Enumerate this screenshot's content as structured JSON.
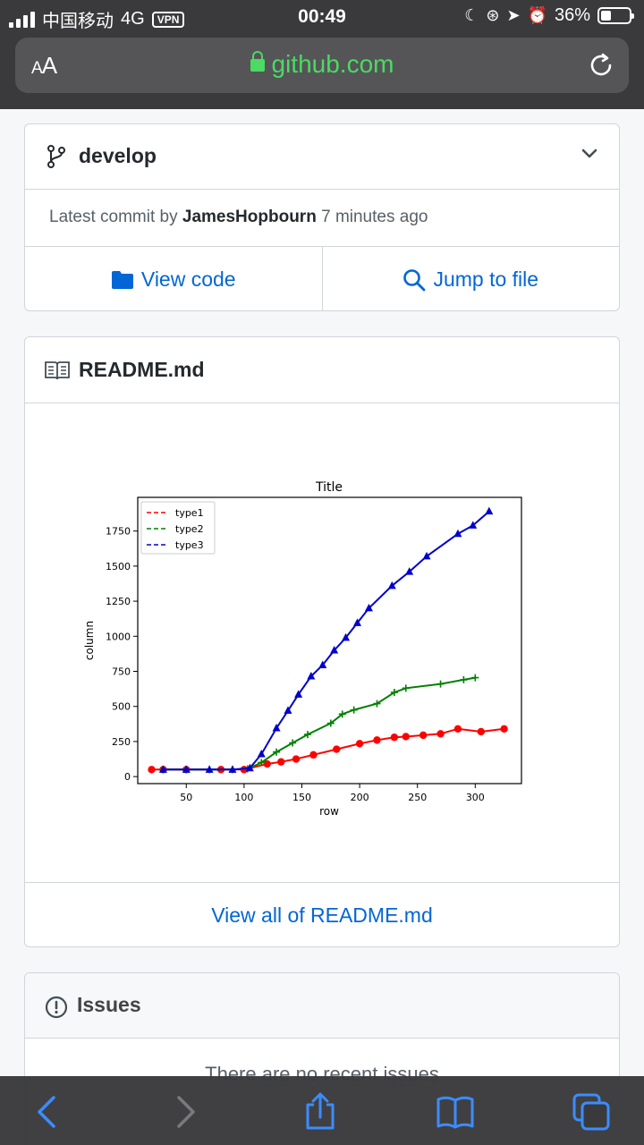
{
  "status_bar": {
    "carrier": "中国移动",
    "network": "4G",
    "vpn": "VPN",
    "time": "00:49",
    "battery": "36%",
    "battery_level": 0.36
  },
  "browser": {
    "text_size_label": "AA",
    "url": "github.com"
  },
  "branch": {
    "name": "develop",
    "commit_prefix": "Latest commit by",
    "commit_author": "JamesHopbourn",
    "commit_time": "7 minutes ago",
    "view_code_label": "View code",
    "jump_to_file_label": "Jump to file"
  },
  "readme": {
    "title": "README.md",
    "view_all_label": "View all of README.md"
  },
  "issues": {
    "title": "Issues",
    "empty_text": "There are no recent issues"
  },
  "chart_data": {
    "type": "line",
    "title": "Title",
    "xlabel": "row",
    "ylabel": "column",
    "xlim": [
      8,
      340
    ],
    "ylim": [
      -50,
      1990
    ],
    "xticks": [
      50,
      100,
      150,
      200,
      250,
      300
    ],
    "yticks": [
      0,
      250,
      500,
      750,
      1000,
      1250,
      1500,
      1750
    ],
    "legend_position": "top-left",
    "series": [
      {
        "name": "type1",
        "color": "#ff0000",
        "marker": "circle",
        "x": [
          20,
          30,
          50,
          80,
          100,
          120,
          132,
          145,
          160,
          180,
          200,
          215,
          230,
          240,
          255,
          270,
          285,
          305,
          325
        ],
        "y": [
          50,
          50,
          50,
          50,
          50,
          90,
          105,
          125,
          155,
          195,
          235,
          260,
          280,
          285,
          295,
          305,
          340,
          320,
          340
        ]
      },
      {
        "name": "type2",
        "color": "#008000",
        "marker": "plus",
        "x": [
          30,
          50,
          70,
          90,
          103,
          115,
          128,
          142,
          155,
          175,
          185,
          195,
          215,
          230,
          240,
          270,
          290,
          300
        ],
        "y": [
          50,
          50,
          50,
          50,
          55,
          100,
          175,
          240,
          300,
          380,
          445,
          475,
          520,
          600,
          630,
          660,
          690,
          705
        ]
      },
      {
        "name": "type3",
        "color": "#0000cc",
        "marker": "triangle",
        "x": [
          30,
          50,
          70,
          90,
          105,
          115,
          128,
          138,
          147,
          158,
          168,
          178,
          188,
          198,
          208,
          228,
          243,
          258,
          285,
          298,
          312
        ],
        "y": [
          50,
          50,
          50,
          50,
          60,
          160,
          345,
          470,
          585,
          715,
          795,
          900,
          990,
          1095,
          1200,
          1360,
          1460,
          1570,
          1730,
          1790,
          1890
        ]
      }
    ]
  }
}
